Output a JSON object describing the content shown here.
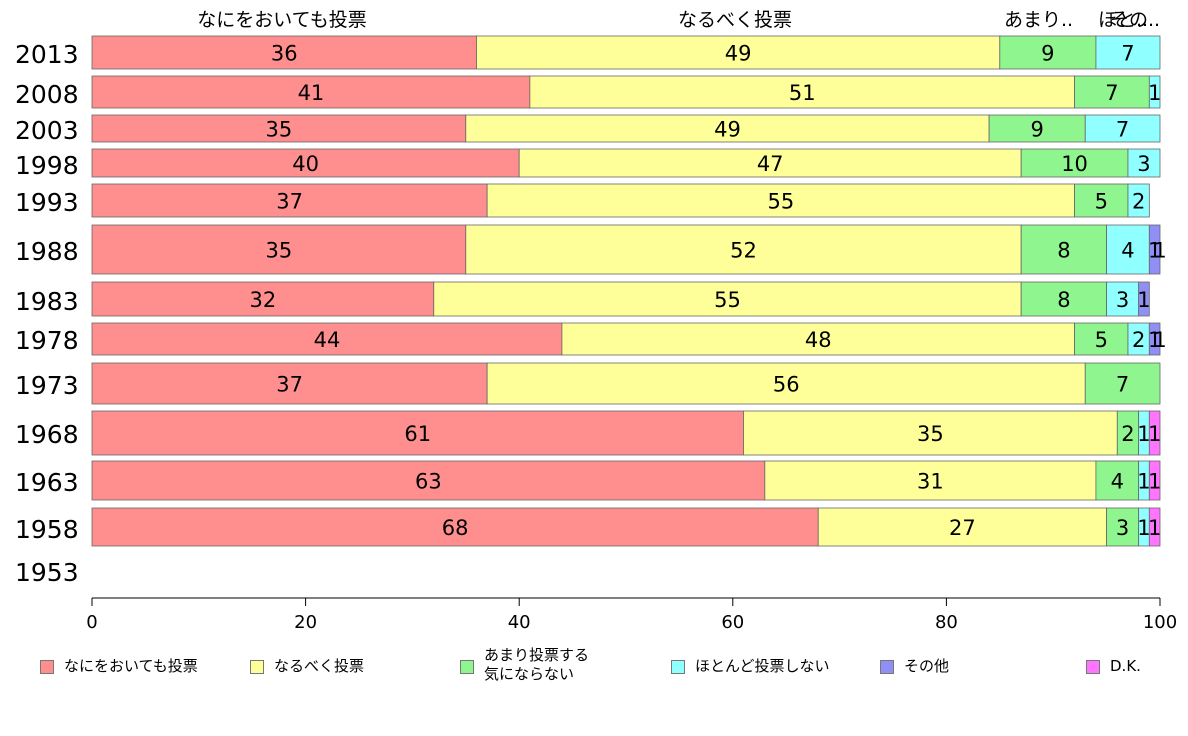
{
  "chart_data": {
    "type": "bar",
    "orientation": "horizontal",
    "stacked": true,
    "title": "",
    "xlabel": "",
    "ylabel": "",
    "xlim": [
      0,
      100
    ],
    "x_ticks": [
      "0",
      "20",
      "40",
      "60",
      "80",
      "100"
    ],
    "grid": false,
    "legend_position": "bottom",
    "categories": [
      "2013",
      "2008",
      "2003",
      "1998",
      "1993",
      "1988",
      "1983",
      "1978",
      "1973",
      "1968",
      "1963",
      "1958",
      "1953"
    ],
    "top_labels": [
      "なにをおいても投票",
      "なるべく投票",
      "あまり..",
      "ほと..",
      "その.."
    ],
    "series": [
      {
        "name": "なにをおいても投票",
        "color": "#ff8f8f",
        "values": [
          36,
          41,
          35,
          40,
          37,
          35,
          32,
          44,
          37,
          61,
          63,
          68,
          null
        ]
      },
      {
        "name": "なるべく投票",
        "color": "#ffff99",
        "values": [
          49,
          51,
          49,
          47,
          55,
          52,
          55,
          48,
          56,
          35,
          31,
          27,
          null
        ]
      },
      {
        "name": "あまり投票する\n気にならない",
        "color": "#8ff58f",
        "values": [
          9,
          7,
          9,
          10,
          5,
          8,
          8,
          5,
          7,
          2,
          4,
          3,
          null
        ]
      },
      {
        "name": "ほとんど投票しない",
        "color": "#8fffff",
        "values": [
          7,
          1,
          7,
          3,
          2,
          4,
          3,
          2,
          0,
          1,
          1,
          1,
          null
        ]
      },
      {
        "name": "その他",
        "color": "#8f8ff5",
        "values": [
          0,
          0,
          0,
          0,
          0,
          1,
          1,
          1,
          0,
          0,
          0,
          0,
          null
        ]
      },
      {
        "name": "D.K.",
        "color": "#ff75ff",
        "values": [
          0,
          0,
          0,
          0,
          0,
          1,
          0,
          1,
          0,
          1,
          1,
          1,
          null
        ]
      }
    ]
  }
}
